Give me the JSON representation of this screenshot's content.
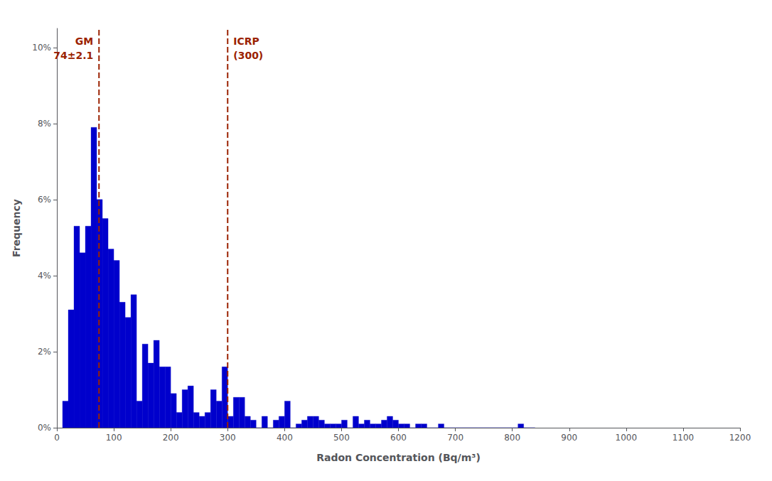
{
  "chart_data": {
    "type": "histogram",
    "xlabel": "Radon Concentration (Bq/m³)",
    "ylabel": "Frequency",
    "color": "#0000CC",
    "bins": [
      10,
      20,
      30,
      40,
      50,
      60,
      70,
      80,
      90,
      100,
      110,
      120,
      130,
      140,
      150,
      160,
      170,
      180,
      190,
      200,
      210,
      220,
      230,
      240,
      250,
      260,
      270,
      280,
      290,
      300,
      310,
      320,
      330,
      340,
      350,
      360,
      370,
      380,
      390,
      400,
      410,
      420,
      430,
      440,
      450,
      460,
      470,
      480,
      490,
      500,
      510,
      520,
      530,
      540,
      550,
      560,
      570,
      580,
      590,
      600,
      610,
      620,
      630,
      640,
      650,
      660,
      670,
      680,
      690,
      700,
      710,
      720,
      730,
      740,
      750,
      760,
      770,
      780,
      790,
      800,
      810,
      820,
      830,
      840
    ],
    "values": [
      0.007,
      0.031,
      0.053,
      0.046,
      0.053,
      0.079,
      0.06,
      0.055,
      0.047,
      0.044,
      0.033,
      0.029,
      0.035,
      0.007,
      0.022,
      0.017,
      0.023,
      0.016,
      0.016,
      0.009,
      0.004,
      0.01,
      0.011,
      0.004,
      0.003,
      0.004,
      0.01,
      0.007,
      0.016,
      0.003,
      0.008,
      0.008,
      0.003,
      0.002,
      0.0,
      0.003,
      0.0,
      0.002,
      0.003,
      0.007,
      0.0,
      0.001,
      0.002,
      0.003,
      0.003,
      0.002,
      0.001,
      0.001,
      0.001,
      0.002,
      0.0,
      0.003,
      0.001,
      0.002,
      0.001,
      0.001,
      0.002,
      0.003,
      0.002,
      0.001,
      0.001,
      0.0,
      0.001,
      0.001,
      0.0,
      0.0,
      0.001,
      0.0,
      0.0,
      0.0,
      0.0,
      0.0,
      0.0,
      0.0,
      0.0,
      0.0,
      0.0,
      0.0,
      0.0,
      0.0,
      0.001,
      0.0,
      0.0
    ],
    "xlim": [
      0,
      1200
    ],
    "ylim": [
      0,
      0.105
    ],
    "xticks": [
      0,
      100,
      200,
      300,
      400,
      500,
      600,
      700,
      800,
      900,
      1000,
      1100,
      1200
    ],
    "yticks": [
      {
        "value": 0.0,
        "label": "0%"
      },
      {
        "value": 0.02,
        "label": "2%"
      },
      {
        "value": 0.04,
        "label": "4%"
      },
      {
        "value": 0.06,
        "label": "6%"
      },
      {
        "value": 0.08,
        "label": "8%"
      },
      {
        "value": 0.1,
        "label": "10%"
      }
    ],
    "grid": false,
    "annotations": [
      {
        "x": 74,
        "color": "#9B2200",
        "line_style": "dashed",
        "text": [
          "GM",
          "74±2.1"
        ]
      },
      {
        "x": 300,
        "color": "#9B2200",
        "line_style": "dashed",
        "text": [
          "ICRP",
          "(300)"
        ]
      }
    ]
  }
}
